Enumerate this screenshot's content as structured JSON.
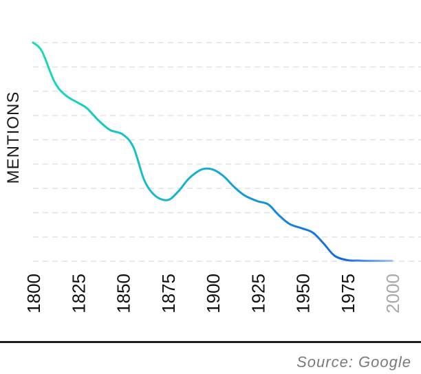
{
  "chart_data": {
    "type": "line",
    "title": "",
    "xlabel": "",
    "ylabel": "MENTIONS",
    "x": [
      1800,
      1805,
      1812,
      1818,
      1825,
      1830,
      1837,
      1843,
      1850,
      1856,
      1862,
      1868,
      1875,
      1881,
      1887,
      1894,
      1900,
      1906,
      1912,
      1918,
      1925,
      1931,
      1937,
      1943,
      1950,
      1956,
      1962,
      1968,
      1975,
      1981,
      1987,
      1993,
      2000
    ],
    "y": [
      10,
      9.6,
      8.2,
      7.6,
      7.25,
      7.0,
      6.4,
      6.0,
      5.8,
      5.2,
      3.7,
      3.0,
      2.8,
      3.2,
      3.8,
      4.2,
      4.2,
      3.9,
      3.4,
      3.0,
      2.75,
      2.6,
      2.1,
      1.7,
      1.5,
      1.3,
      0.8,
      0.25,
      0.05,
      0.03,
      0.02,
      0.02,
      0.02
    ],
    "x_ticks": [
      "1800",
      "1825",
      "1850",
      "1875",
      "1900",
      "1925",
      "1950",
      "1975",
      "2000"
    ],
    "x_range": [
      1800,
      2000
    ],
    "y_range": [
      0,
      10
    ],
    "grid": "horizontal dashed",
    "legend": "none",
    "colors": {
      "start": "#19dcb6",
      "mid": "#13aad8",
      "end": "#1565e6",
      "tail": "#9fbff7",
      "grid": "#e2e2e2",
      "faded_tick": "#a9a9a9"
    }
  },
  "source": "Source: Google"
}
